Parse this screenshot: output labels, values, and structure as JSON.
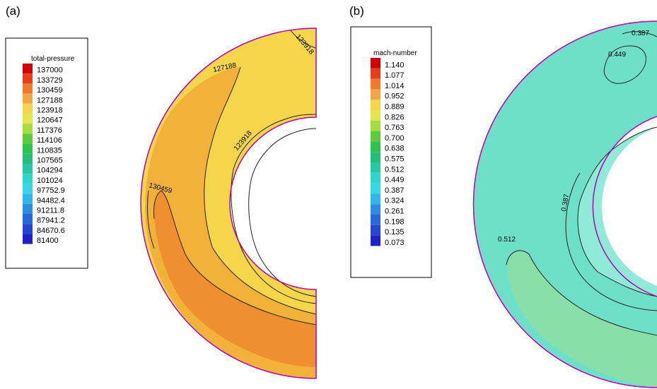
{
  "panels": {
    "a": {
      "label": "(a)",
      "legend_title": "total-pressure",
      "legend_values": [
        "137000",
        "133729",
        "130459",
        "127188",
        "123918",
        "120647",
        "117376",
        "114106",
        "110835",
        "107565",
        "104294",
        "101024",
        "97752.9",
        "94482.4",
        "91211.8",
        "87941.2",
        "84670.6",
        "81400"
      ],
      "contour_labels": [
        "123918",
        "127188",
        "123918",
        "130459"
      ]
    },
    "b": {
      "label": "(b)",
      "legend_title": "mach-number",
      "legend_values": [
        "1.140",
        "1.077",
        "1.014",
        "0.952",
        "0.889",
        "0.826",
        "0.763",
        "0.700",
        "0.638",
        "0.575",
        "0.512",
        "0.449",
        "0.387",
        "0.324",
        "0.261",
        "0.198",
        "0.135",
        "0.073"
      ],
      "contour_labels": [
        "0.387",
        "0.449",
        "0.387",
        "0.512"
      ]
    }
  },
  "colors": {
    "scale": [
      "#d40000",
      "#e83d1a",
      "#ef7a2a",
      "#f2a640",
      "#f5d64a",
      "#e5e64a",
      "#a6dc3e",
      "#5ccc3a",
      "#2ec44a",
      "#22c07a",
      "#25c9a8",
      "#2ed6cc",
      "#36d8e6",
      "#2fb6ea",
      "#2a8ee6",
      "#2866dc",
      "#2444d2",
      "#1f22c8"
    ],
    "outline": "#b400b4"
  }
}
